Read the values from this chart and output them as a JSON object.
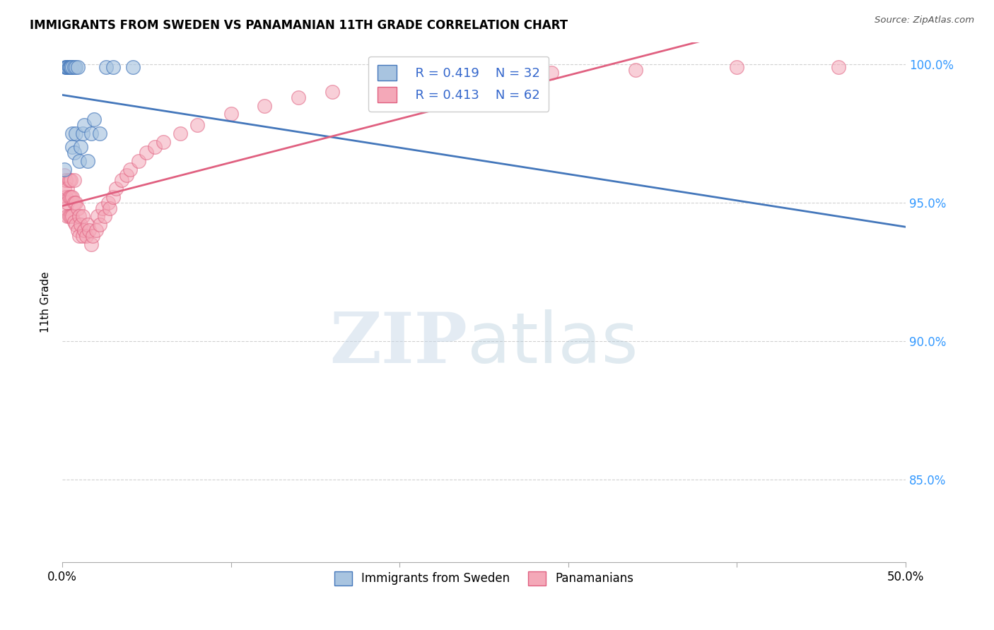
{
  "title": "IMMIGRANTS FROM SWEDEN VS PANAMANIAN 11TH GRADE CORRELATION CHART",
  "source": "Source: ZipAtlas.com",
  "ylabel": "11th Grade",
  "xlim": [
    0.0,
    0.5
  ],
  "ylim": [
    0.82,
    1.008
  ],
  "yticks": [
    0.85,
    0.9,
    0.95,
    1.0
  ],
  "ytick_labels": [
    "85.0%",
    "90.0%",
    "95.0%",
    "100.0%"
  ],
  "legend_r1": "R = 0.419",
  "legend_n1": "N = 32",
  "legend_r2": "R = 0.413",
  "legend_n2": "N = 62",
  "blue_fill": "#A8C4E0",
  "blue_edge": "#4477BB",
  "pink_fill": "#F4A8B8",
  "pink_edge": "#E06080",
  "blue_line": "#4477BB",
  "pink_line": "#E06080",
  "sweden_x": [
    0.001,
    0.002,
    0.002,
    0.003,
    0.003,
    0.003,
    0.004,
    0.004,
    0.004,
    0.005,
    0.005,
    0.005,
    0.005,
    0.006,
    0.006,
    0.006,
    0.007,
    0.007,
    0.008,
    0.008,
    0.009,
    0.01,
    0.011,
    0.012,
    0.013,
    0.015,
    0.017,
    0.019,
    0.022,
    0.026,
    0.03,
    0.042
  ],
  "sweden_y": [
    0.962,
    0.999,
    0.999,
    0.999,
    0.999,
    0.999,
    0.999,
    0.999,
    0.999,
    0.999,
    0.999,
    0.999,
    0.999,
    0.975,
    0.97,
    0.999,
    0.999,
    0.968,
    0.975,
    0.999,
    0.999,
    0.965,
    0.97,
    0.975,
    0.978,
    0.965,
    0.975,
    0.98,
    0.975,
    0.999,
    0.999,
    0.999
  ],
  "panama_x": [
    0.001,
    0.001,
    0.002,
    0.002,
    0.002,
    0.003,
    0.003,
    0.003,
    0.004,
    0.004,
    0.004,
    0.005,
    0.005,
    0.005,
    0.006,
    0.006,
    0.007,
    0.007,
    0.007,
    0.008,
    0.008,
    0.009,
    0.009,
    0.01,
    0.01,
    0.011,
    0.012,
    0.012,
    0.013,
    0.014,
    0.015,
    0.016,
    0.017,
    0.018,
    0.02,
    0.021,
    0.022,
    0.024,
    0.025,
    0.027,
    0.028,
    0.03,
    0.032,
    0.035,
    0.038,
    0.04,
    0.045,
    0.05,
    0.055,
    0.06,
    0.07,
    0.08,
    0.1,
    0.12,
    0.14,
    0.16,
    0.2,
    0.24,
    0.29,
    0.34,
    0.4,
    0.46
  ],
  "panama_y": [
    0.96,
    0.955,
    0.952,
    0.958,
    0.948,
    0.955,
    0.95,
    0.945,
    0.958,
    0.952,
    0.945,
    0.958,
    0.952,
    0.945,
    0.952,
    0.945,
    0.958,
    0.95,
    0.943,
    0.95,
    0.942,
    0.948,
    0.94,
    0.945,
    0.938,
    0.942,
    0.938,
    0.945,
    0.94,
    0.938,
    0.942,
    0.94,
    0.935,
    0.938,
    0.94,
    0.945,
    0.942,
    0.948,
    0.945,
    0.95,
    0.948,
    0.952,
    0.955,
    0.958,
    0.96,
    0.962,
    0.965,
    0.968,
    0.97,
    0.972,
    0.975,
    0.978,
    0.982,
    0.985,
    0.988,
    0.99,
    0.993,
    0.995,
    0.997,
    0.998,
    0.999,
    0.999
  ]
}
